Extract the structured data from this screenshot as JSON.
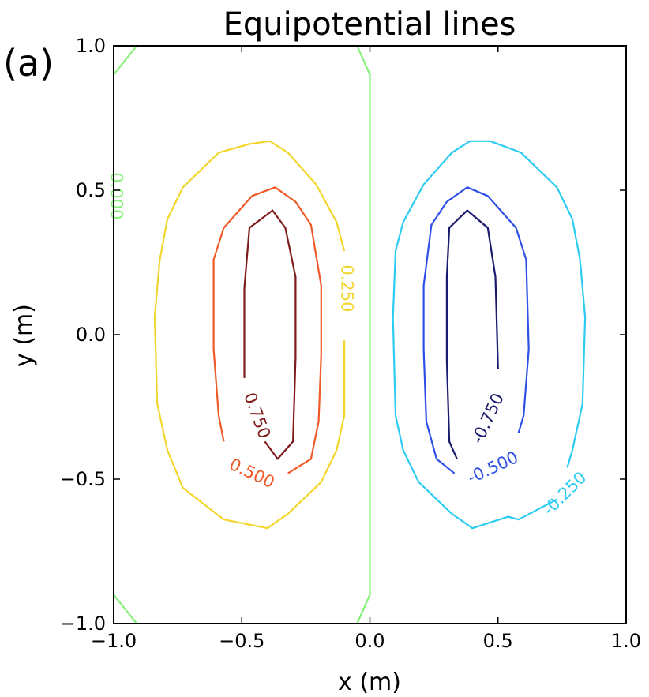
{
  "chart_data": {
    "type": "contour",
    "title": "Equipotential lines",
    "panel_label": "(a)",
    "xlabel": "x (m)",
    "ylabel": "y (m)",
    "xlim": [
      -1.0,
      1.0
    ],
    "ylim": [
      -1.0,
      1.0
    ],
    "xticks": [
      -1.0,
      -0.5,
      0.0,
      0.5,
      1.0
    ],
    "yticks": [
      -1.0,
      -0.5,
      0.0,
      0.5,
      1.0
    ],
    "xtick_labels": [
      "−1.0",
      "−0.5",
      "0.0",
      "0.5",
      "1.0"
    ],
    "ytick_labels": [
      "−1.0",
      "−0.5",
      "0.0",
      "0.5",
      "1.0"
    ],
    "grid": false,
    "levels": [
      {
        "value": 0.75,
        "label": "0.750",
        "color": "#7f1a1a",
        "segments": [
          [
            [
              -0.49,
              -0.15
            ],
            [
              -0.49,
              0.16
            ],
            [
              -0.47,
              0.37
            ],
            [
              -0.38,
              0.43
            ],
            [
              -0.33,
              0.37
            ],
            [
              -0.29,
              0.2
            ],
            [
              -0.29,
              -0.08
            ],
            [
              -0.3,
              -0.37
            ],
            [
              -0.36,
              -0.43
            ],
            [
              -0.41,
              -0.37
            ]
          ]
        ],
        "label_at": [
          -0.44,
          -0.28
        ],
        "label_rotation": 70
      },
      {
        "value": 0.5,
        "label": "0.500",
        "color": "#f05a28",
        "segments": [
          [
            [
              -0.57,
              -0.37
            ],
            [
              -0.59,
              -0.28
            ],
            [
              -0.61,
              -0.05
            ],
            [
              -0.61,
              0.26
            ],
            [
              -0.57,
              0.37
            ],
            [
              -0.46,
              0.48
            ],
            [
              -0.37,
              0.51
            ],
            [
              -0.29,
              0.46
            ],
            [
              -0.23,
              0.38
            ],
            [
              -0.19,
              0.17
            ],
            [
              -0.19,
              -0.07
            ],
            [
              -0.2,
              -0.3
            ],
            [
              -0.23,
              -0.43
            ],
            [
              -0.32,
              -0.48
            ]
          ]
        ],
        "label_at": [
          -0.46,
          -0.48
        ],
        "label_rotation": 25
      },
      {
        "value": 0.25,
        "label": "0.250",
        "color": "#f2d62c",
        "segments": [
          [
            [
              -0.1,
              0.29
            ],
            [
              -0.13,
              0.39
            ],
            [
              -0.21,
              0.52
            ],
            [
              -0.32,
              0.63
            ],
            [
              -0.39,
              0.67
            ],
            [
              -0.47,
              0.66
            ],
            [
              -0.59,
              0.63
            ],
            [
              -0.73,
              0.51
            ],
            [
              -0.79,
              0.4
            ],
            [
              -0.82,
              0.26
            ],
            [
              -0.84,
              0.06
            ],
            [
              -0.83,
              -0.24
            ],
            [
              -0.79,
              -0.4
            ],
            [
              -0.73,
              -0.53
            ],
            [
              -0.57,
              -0.64
            ],
            [
              -0.4,
              -0.67
            ],
            [
              -0.32,
              -0.62
            ],
            [
              -0.19,
              -0.51
            ],
            [
              -0.13,
              -0.4
            ],
            [
              -0.1,
              -0.28
            ],
            [
              -0.1,
              -0.02
            ]
          ]
        ],
        "label_at": [
          -0.09,
          0.16
        ],
        "label_rotation": 90
      },
      {
        "value": 0.0,
        "label": "0.000",
        "color": "#86f07a",
        "segments": [
          [
            [
              -1.0,
              0.9
            ],
            [
              -0.91,
              1.0
            ]
          ],
          [
            [
              -0.05,
              1.0
            ],
            [
              0.0,
              0.9
            ],
            [
              0.0,
              -0.9
            ],
            [
              -0.05,
              -1.0
            ]
          ],
          [
            [
              -1.0,
              -0.9
            ],
            [
              -0.91,
              -1.0
            ]
          ]
        ],
        "label_at": [
          -0.99,
          0.48
        ],
        "label_rotation": 90
      },
      {
        "value": -0.75,
        "label": "-0.750",
        "color": "#1a1a6e",
        "segments": [
          [
            [
              0.34,
              -0.43
            ],
            [
              0.31,
              -0.37
            ],
            [
              0.3,
              -0.09
            ],
            [
              0.3,
              0.2
            ],
            [
              0.31,
              0.37
            ],
            [
              0.38,
              0.43
            ],
            [
              0.46,
              0.37
            ],
            [
              0.49,
              0.2
            ],
            [
              0.5,
              -0.12
            ]
          ]
        ],
        "label_at": [
          0.46,
          -0.29
        ],
        "label_rotation": -65
      },
      {
        "value": -0.5,
        "label": "-0.500",
        "color": "#2e50e6",
        "segments": [
          [
            [
              0.33,
              -0.48
            ],
            [
              0.26,
              -0.43
            ],
            [
              0.22,
              -0.3
            ],
            [
              0.21,
              -0.05
            ],
            [
              0.21,
              0.17
            ],
            [
              0.24,
              0.38
            ],
            [
              0.3,
              0.46
            ],
            [
              0.38,
              0.51
            ],
            [
              0.46,
              0.48
            ],
            [
              0.57,
              0.37
            ],
            [
              0.61,
              0.26
            ],
            [
              0.62,
              -0.05
            ],
            [
              0.6,
              -0.28
            ],
            [
              0.58,
              -0.34
            ]
          ]
        ],
        "label_at": [
          0.48,
          -0.46
        ],
        "label_rotation": -25
      },
      {
        "value": -0.25,
        "label": "-0.250",
        "color": "#2ccbf2",
        "segments": [
          [
            [
              0.54,
              -0.63
            ],
            [
              0.58,
              -0.64
            ],
            [
              0.73,
              -0.57
            ]
          ],
          [
            [
              0.77,
              -0.46
            ],
            [
              0.79,
              -0.4
            ],
            [
              0.83,
              -0.24
            ],
            [
              0.84,
              0.06
            ],
            [
              0.82,
              0.26
            ],
            [
              0.79,
              0.4
            ],
            [
              0.73,
              0.51
            ],
            [
              0.59,
              0.63
            ],
            [
              0.47,
              0.67
            ],
            [
              0.39,
              0.67
            ],
            [
              0.32,
              0.63
            ],
            [
              0.21,
              0.52
            ],
            [
              0.13,
              0.39
            ],
            [
              0.1,
              0.29
            ],
            [
              0.09,
              0.06
            ],
            [
              0.1,
              -0.28
            ],
            [
              0.13,
              -0.4
            ],
            [
              0.19,
              -0.51
            ],
            [
              0.32,
              -0.62
            ],
            [
              0.4,
              -0.67
            ],
            [
              0.54,
              -0.63
            ]
          ]
        ],
        "label_at": [
          0.76,
          -0.55
        ],
        "label_rotation": -45
      }
    ]
  }
}
